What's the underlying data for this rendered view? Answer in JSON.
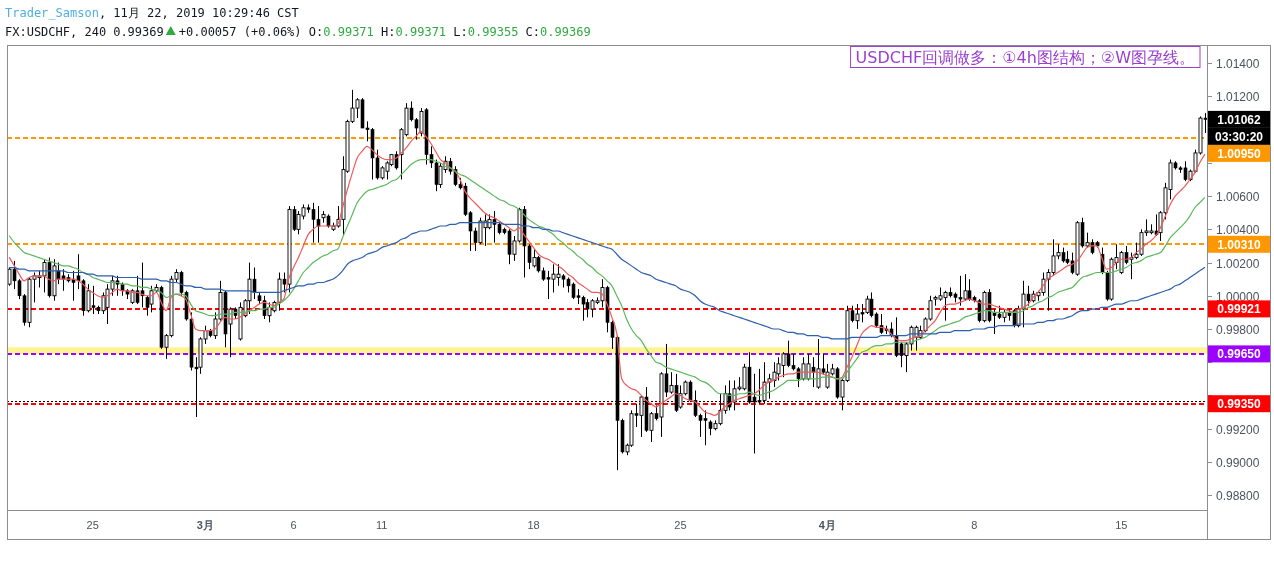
{
  "chart_data": {
    "type": "candlestick",
    "title": "FX:USDCHF, 240",
    "annotations": [
      "Trader_Samson, 11月 22, 2019 10:29:46 CST",
      "0.99369",
      "+0.00057 (+0.06%) O:0.99371 H:0.99371 L:0.99355 C:0.99369",
      "USDCHF回调做多：①4h图结构；②W图孕线。",
      "1.01062",
      "03:30:20"
    ],
    "categories": [
      null,
      null,
      null,
      null,
      null,
      null,
      null,
      null,
      null,
      null,
      null,
      null,
      null,
      null,
      null,
      null,
      null,
      "25",
      null,
      null,
      null,
      null,
      null,
      null,
      null,
      null,
      null,
      null,
      null,
      null,
      null,
      null,
      null,
      null,
      null,
      null,
      null,
      null,
      null,
      null,
      "3月",
      null,
      null,
      null,
      null,
      null,
      null,
      null,
      null,
      null,
      null,
      null,
      null,
      null,
      null,
      null,
      null,
      null,
      "6",
      null,
      null,
      null,
      null,
      null,
      null,
      null,
      null,
      null,
      null,
      null,
      null,
      null,
      null,
      null,
      null,
      null,
      "11",
      null,
      null,
      null,
      null,
      null,
      null,
      null,
      null,
      null,
      null,
      null,
      null,
      null,
      null,
      null,
      null,
      null,
      null,
      null,
      null,
      null,
      null,
      null,
      null,
      null,
      null,
      null,
      null,
      null,
      null,
      "18",
      null,
      null,
      null,
      null,
      null,
      null,
      null,
      null,
      null,
      null,
      null,
      null,
      null,
      null,
      null,
      null,
      null,
      null,
      null,
      null,
      null,
      null,
      null,
      null,
      null,
      null,
      null,
      null,
      null,
      "25",
      null,
      null,
      null,
      null,
      null,
      null,
      null,
      null,
      null,
      null,
      null,
      null,
      null,
      null,
      null,
      null,
      null,
      null,
      null,
      null,
      null,
      null,
      null,
      null,
      null,
      null,
      null,
      null,
      null,
      "4月",
      null,
      null,
      null,
      null,
      null,
      null,
      null,
      null,
      null,
      null,
      null,
      null,
      null,
      null,
      null,
      null,
      null,
      null,
      null,
      null,
      null,
      null,
      null,
      null,
      null,
      null,
      null,
      null,
      null,
      "8",
      null,
      null,
      null,
      null,
      null,
      null,
      null,
      null,
      null,
      null,
      null,
      null,
      null,
      null,
      null,
      null,
      null,
      null,
      null,
      null,
      null,
      null,
      null,
      null,
      null,
      null,
      null,
      null,
      null,
      "15",
      null,
      null,
      null,
      null,
      null,
      null,
      null,
      null,
      null,
      null,
      null,
      null,
      null,
      null,
      null,
      null,
      null
    ],
    "ohlc": [
      [
        1.0007,
        1.0017,
        1.0006,
        1.0016
      ],
      [
        1.0016,
        1.0021,
        1.0004,
        1.0009
      ],
      [
        1.0009,
        1.001,
        0.9998,
        1.0
      ],
      [
        1.0,
        1.0001,
        0.9982,
        0.9984
      ],
      [
        0.9984,
        1.0011,
        0.9981,
        1.001
      ],
      [
        1.001,
        1.0014,
        0.9996,
        1.0012
      ],
      [
        1.0011,
        1.0015,
        1.0005,
        1.0012
      ],
      [
        1.0012,
        1.0022,
        1.0002,
        1.002
      ],
      [
        1.002,
        1.0023,
        0.9999,
        1.0
      ],
      [
        1.0,
        1.0022,
        0.9997,
        1.0018
      ],
      [
        1.0015,
        1.002,
        1.0007,
        1.001
      ],
      [
        1.0012,
        1.0016,
        1.0003,
        1.001
      ],
      [
        1.0011,
        1.0013,
        1.0008,
        1.0009
      ],
      [
        1.001,
        1.0015,
        0.9997,
        1.0008
      ],
      [
        1.0012,
        1.0025,
        1.0004,
        1.0009
      ],
      [
        1.0009,
        1.001,
        0.9988,
        0.9991
      ],
      [
        0.9991,
        1.0007,
        0.999,
        1.0003
      ],
      [
        0.9994,
        1.0006,
        0.9989,
        0.9993
      ],
      [
        0.9993,
        0.9994,
        0.9989,
        0.9991
      ],
      [
        0.9991,
        1.0002,
        0.9989,
        1.0
      ],
      [
        0.9993,
        1.0007,
        0.9983,
        1.0004
      ],
      [
        1.0004,
        1.0012,
        1.0,
        1.0009
      ],
      [
        1.0009,
        1.0012,
        1.0,
        1.0007
      ],
      [
        1.0007,
        1.0008,
        1.0,
        1.0003
      ],
      [
        1.0003,
        1.0004,
        0.9998,
        1.0001
      ],
      [
        0.9996,
        1.0004,
        0.9995,
        1.0003
      ],
      [
        1.0003,
        1.0012,
        0.9995,
        0.9996
      ],
      [
        1.0003,
        1.002,
        0.9993,
        1.0
      ],
      [
        0.9999,
        1.0,
        0.9988,
        0.9993
      ],
      [
        0.9995,
        1.0006,
        0.999,
        1.0003
      ],
      [
        1.0003,
        1.0007,
        1.0002,
        1.0005
      ],
      [
        1.0005,
        1.0006,
        0.9968,
        0.9969
      ],
      [
        0.9969,
        0.9977,
        0.9962,
        0.9976
      ],
      [
        0.9976,
        1.0012,
        0.9975,
        1.001
      ],
      [
        1.001,
        1.0016,
        1.0008,
        1.0014
      ],
      [
        1.0014,
        1.0015,
        1.0,
        1.0002
      ],
      [
        1.0002,
        1.0003,
        0.9985,
        0.9986
      ],
      [
        0.9986,
        0.999,
        0.9955,
        0.9957
      ],
      [
        0.9957,
        0.9963,
        0.9927,
        0.9956
      ],
      [
        0.9957,
        0.9975,
        0.9953,
        0.9974
      ],
      [
        0.9974,
        0.9982,
        0.9971,
        0.9979
      ],
      [
        0.9979,
        0.998,
        0.9975,
        0.9976
      ],
      [
        0.9976,
        0.999,
        0.9974,
        0.9986
      ],
      [
        0.9986,
        1.0009,
        0.9985,
        1.0002
      ],
      [
        1.0002,
        1.0003,
        0.9969,
        0.9977
      ],
      [
        0.9983,
        0.9993,
        0.9963,
        0.9992
      ],
      [
        0.9992,
        0.9993,
        0.9986,
        0.9988
      ],
      [
        0.9974,
        0.9996,
        0.9973,
        0.9993
      ],
      [
        0.9988,
        0.9998,
        0.9987,
        0.9997
      ],
      [
        0.9997,
        1.002,
        0.9989,
        1.001
      ],
      [
        1.001,
        1.0017,
        0.9998,
        1.0002
      ],
      [
        1.0,
        1.0002,
        0.9995,
        0.9997
      ],
      [
        0.9997,
        1.0,
        0.9986,
        0.9988
      ],
      [
        0.9988,
        0.9996,
        0.9984,
        0.9993
      ],
      [
        0.9991,
        0.9997,
        0.999,
        0.9996
      ],
      [
        0.9996,
        1.0014,
        0.9991,
        1.001
      ],
      [
        1.001,
        1.0014,
        1.0002,
        1.0007
      ],
      [
        1.0007,
        1.0054,
        1.0002,
        1.0052
      ],
      [
        1.0052,
        1.0054,
        1.0039,
        1.004
      ],
      [
        1.004,
        1.0051,
        1.0037,
        1.0049
      ],
      [
        1.0048,
        1.0055,
        1.0046,
        1.0053
      ],
      [
        1.0053,
        1.0055,
        1.005,
        1.0052
      ],
      [
        1.0052,
        1.0056,
        1.0032,
        1.0046
      ],
      [
        1.0046,
        1.0054,
        1.0032,
        1.0042
      ],
      [
        1.0047,
        1.0051,
        1.0044,
        1.0049
      ],
      [
        1.0048,
        1.0049,
        1.0041,
        1.0042
      ],
      [
        1.004,
        1.0044,
        1.0039,
        1.0042
      ],
      [
        1.0042,
        1.0054,
        1.0041,
        1.0046
      ],
      [
        1.0046,
        1.0084,
        1.0036,
        1.0076
      ],
      [
        1.0075,
        1.0106,
        1.0074,
        1.0105
      ],
      [
        1.0105,
        1.0124,
        1.0104,
        1.0113
      ],
      [
        1.0113,
        1.0119,
        1.0107,
        1.0118
      ],
      [
        1.0118,
        1.0119,
        1.0101,
        1.0101
      ],
      [
        1.0101,
        1.0105,
        1.0093,
        1.01
      ],
      [
        1.01,
        1.0101,
        1.007,
        1.0083
      ],
      [
        1.0083,
        1.0088,
        1.007,
        1.0071
      ],
      [
        1.0071,
        1.0078,
        1.007,
        1.0077
      ],
      [
        1.0075,
        1.0081,
        1.007,
        1.008
      ],
      [
        1.0079,
        1.0085,
        1.0078,
        1.0085
      ],
      [
        1.0085,
        1.0087,
        1.0076,
        1.0077
      ],
      [
        1.0085,
        1.0101,
        1.007,
        1.01
      ],
      [
        1.0097,
        1.0116,
        1.0096,
        1.0113
      ],
      [
        1.0113,
        1.0117,
        1.0105,
        1.0106
      ],
      [
        1.0106,
        1.0107,
        1.0094,
        1.0101
      ],
      [
        1.0098,
        1.0113,
        1.0096,
        1.0111
      ],
      [
        1.0112,
        1.0113,
        1.0079,
        1.0085
      ],
      [
        1.0085,
        1.009,
        1.0077,
        1.008
      ],
      [
        1.008,
        1.0082,
        1.0063,
        1.0067
      ],
      [
        1.0067,
        1.008,
        1.0065,
        1.0078
      ],
      [
        1.0076,
        1.0084,
        1.0074,
        1.0081
      ],
      [
        1.0081,
        1.0083,
        1.0073,
        1.0075
      ],
      [
        1.0076,
        1.0078,
        1.0066,
        1.0067
      ],
      [
        1.0067,
        1.0071,
        1.0064,
        1.0065
      ],
      [
        1.0066,
        1.0068,
        1.0048,
        1.0049
      ],
      [
        1.005,
        1.0051,
        1.0027,
        1.0039
      ],
      [
        1.0039,
        1.0041,
        1.0027,
        1.0032
      ],
      [
        1.0032,
        1.0047,
        1.0031,
        1.0045
      ],
      [
        1.0041,
        1.0049,
        1.003,
        1.0045
      ],
      [
        1.0041,
        1.0049,
        1.004,
        1.0046
      ],
      [
        1.0046,
        1.0051,
        1.0032,
        1.0043
      ],
      [
        1.0043,
        1.0044,
        1.0037,
        1.0038
      ],
      [
        1.004,
        1.0041,
        1.0037,
        1.0038
      ],
      [
        1.0039,
        1.004,
        1.0019,
        1.0025
      ],
      [
        1.0025,
        1.0036,
        1.0021,
        1.0033
      ],
      [
        1.0033,
        1.0053,
        1.0032,
        1.0052
      ],
      [
        1.0052,
        1.0054,
        1.0011,
        1.003
      ],
      [
        1.003,
        1.0031,
        1.0016,
        1.002
      ],
      [
        1.0018,
        1.0028,
        1.0017,
        1.0023
      ],
      [
        1.0023,
        1.0024,
        1.0014,
        1.0015
      ],
      [
        1.0015,
        1.0017,
        1.0009,
        1.001
      ],
      [
        1.0011,
        1.0015,
        0.9998,
        1.001
      ],
      [
        1.001,
        1.0019,
        1.0002,
        1.0013
      ],
      [
        1.0011,
        1.0019,
        1.0006,
        1.0013
      ],
      [
        1.0012,
        1.0013,
        1.0005,
        1.001
      ],
      [
        1.001,
        1.0011,
        1.0002,
        1.0006
      ],
      [
        1.0007,
        1.0008,
        0.9998,
        0.9999
      ],
      [
        1.0,
        1.0004,
        0.9995,
        0.9999
      ],
      [
        0.9999,
        1.0,
        0.9985,
        0.9995
      ],
      [
        0.9996,
        0.9998,
        0.9987,
        0.9992
      ],
      [
        0.9992,
        0.9998,
        0.9987,
        0.9997
      ],
      [
        0.9996,
        0.9999,
        0.9995,
        0.9997
      ],
      [
        0.9997,
        1.001,
        0.9993,
        1.0005
      ],
      [
        1.0005,
        1.0006,
        0.9978,
        0.9984
      ],
      [
        0.9984,
        0.9985,
        0.9968,
        0.9975
      ],
      [
        0.9975,
        0.9976,
        0.9895,
        0.9925
      ],
      [
        0.9925,
        0.9926,
        0.9905,
        0.9906
      ],
      [
        0.9906,
        0.9911,
        0.9904,
        0.991
      ],
      [
        0.991,
        0.9931,
        0.9909,
        0.9929
      ],
      [
        0.9929,
        0.9935,
        0.9921,
        0.9928
      ],
      [
        0.9928,
        0.994,
        0.9915,
        0.9939
      ],
      [
        0.9939,
        0.9945,
        0.9918,
        0.9919
      ],
      [
        0.9919,
        0.993,
        0.9912,
        0.9929
      ],
      [
        0.9929,
        0.9934,
        0.9925,
        0.9926
      ],
      [
        0.9927,
        0.9954,
        0.9915,
        0.9953
      ],
      [
        0.9953,
        0.9971,
        0.9939,
        0.9942
      ],
      [
        0.9942,
        0.9954,
        0.9941,
        0.9946
      ],
      [
        0.9946,
        0.9953,
        0.993,
        0.9931
      ],
      [
        0.9933,
        0.9946,
        0.9932,
        0.9941
      ],
      [
        0.9941,
        0.9949,
        0.994,
        0.9948
      ],
      [
        0.9948,
        0.9949,
        0.9936,
        0.9937
      ],
      [
        0.9937,
        0.9943,
        0.9927,
        0.9928
      ],
      [
        0.9928,
        0.9929,
        0.9915,
        0.9925
      ],
      [
        0.9926,
        0.9931,
        0.991,
        0.9925
      ],
      [
        0.9924,
        0.9925,
        0.9916,
        0.992
      ],
      [
        0.992,
        0.9925,
        0.9919,
        0.9923
      ],
      [
        0.9923,
        0.9941,
        0.9922,
        0.9931
      ],
      [
        0.9931,
        0.9946,
        0.9929,
        0.9941
      ],
      [
        0.9941,
        0.9949,
        0.9931,
        0.9933
      ],
      [
        0.9936,
        0.9949,
        0.9931,
        0.9944
      ],
      [
        0.9944,
        0.9951,
        0.9943,
        0.9945
      ],
      [
        0.9944,
        0.9959,
        0.9943,
        0.9957
      ],
      [
        0.9957,
        0.9966,
        0.9935,
        0.9936
      ],
      [
        0.9939,
        0.9953,
        0.9905,
        0.9936
      ],
      [
        0.9937,
        0.9956,
        0.9935,
        0.9936
      ],
      [
        0.9937,
        0.996,
        0.9935,
        0.9948
      ],
      [
        0.9948,
        0.9953,
        0.9938,
        0.995
      ],
      [
        0.9949,
        0.996,
        0.9945,
        0.9954
      ],
      [
        0.9953,
        0.9963,
        0.9949,
        0.9959
      ],
      [
        0.9958,
        0.9966,
        0.9951,
        0.9965
      ],
      [
        0.9965,
        0.9973,
        0.9957,
        0.9958
      ],
      [
        0.9958,
        0.9965,
        0.9955,
        0.9956
      ],
      [
        0.9956,
        0.9957,
        0.9945,
        0.995
      ],
      [
        0.995,
        0.9963,
        0.9949,
        0.9959
      ],
      [
        0.995,
        0.9965,
        0.9949,
        0.9959
      ],
      [
        0.9957,
        0.9963,
        0.9945,
        0.9954
      ],
      [
        0.9945,
        0.9974,
        0.9944,
        0.9956
      ],
      [
        0.9956,
        0.9965,
        0.9953,
        0.9954
      ],
      [
        0.9945,
        0.9959,
        0.9944,
        0.9954
      ],
      [
        0.9953,
        0.9959,
        0.9952,
        0.9956
      ],
      [
        0.9956,
        0.9957,
        0.9938,
        0.9939
      ],
      [
        0.9939,
        0.995,
        0.9931,
        0.9949
      ],
      [
        0.9949,
        0.9994,
        0.9948,
        0.9991
      ],
      [
        0.9991,
        0.9994,
        0.9984,
        0.9985
      ],
      [
        0.9985,
        0.9995,
        0.998,
        0.9989
      ],
      [
        0.999,
        0.9995,
        0.9984,
        0.9989
      ],
      [
        0.999,
        1.0,
        0.9989,
        0.9998
      ],
      [
        0.9998,
        1.0002,
        0.9987,
        0.9988
      ],
      [
        0.9989,
        0.999,
        0.9981,
        0.9982
      ],
      [
        0.9982,
        0.9989,
        0.9977,
        0.9978
      ],
      [
        0.998,
        0.9982,
        0.9977,
        0.9979
      ],
      [
        0.998,
        0.9984,
        0.9975,
        0.9976
      ],
      [
        0.9976,
        0.9987,
        0.9963,
        0.9964
      ],
      [
        0.9971,
        0.9972,
        0.9957,
        0.9964
      ],
      [
        0.9964,
        0.9972,
        0.9954,
        0.9971
      ],
      [
        0.9971,
        0.9982,
        0.9967,
        0.9981
      ],
      [
        0.9975,
        0.9982,
        0.9967,
        0.9981
      ],
      [
        0.9975,
        0.9982,
        0.9974,
        0.9979
      ],
      [
        0.9979,
        0.9987,
        0.9978,
        0.9986
      ],
      [
        0.9986,
        1.0,
        0.9985,
        0.9997
      ],
      [
        0.9998,
        1.0,
        0.9994,
        0.9999
      ],
      [
        0.9998,
        1.0005,
        0.9997,
        1.0
      ],
      [
        0.9999,
        1.0003,
        0.9985,
        1.0002
      ],
      [
        1.0002,
        1.0005,
        0.9999,
        1.0
      ],
      [
        1.0001,
        1.0002,
        0.9996,
        0.9999
      ],
      [
        0.9999,
        1.0012,
        0.9994,
        0.9998
      ],
      [
        0.9998,
        1.0013,
        0.9997,
        1.0003
      ],
      [
        1.0003,
        1.001,
        0.9997,
        0.9998
      ],
      [
        0.9999,
        1.0,
        0.9996,
        0.9997
      ],
      [
        0.9997,
        0.9998,
        0.9984,
        0.9985
      ],
      [
        0.9985,
        1.0003,
        0.9984,
        1.0002
      ],
      [
        1.0002,
        1.0004,
        0.9984,
        0.9985
      ],
      [
        0.999,
        0.9992,
        0.9977,
        0.9988
      ],
      [
        0.9989,
        0.9994,
        0.9986,
        0.9987
      ],
      [
        0.9987,
        0.9992,
        0.9984,
        0.999
      ],
      [
        0.999,
        0.9992,
        0.9985,
        0.9988
      ],
      [
        0.9991,
        0.9992,
        0.9981,
        0.9982
      ],
      [
        0.9982,
        0.9994,
        0.9981,
        0.9992
      ],
      [
        0.9992,
        1.0009,
        0.9981,
        1.0001
      ],
      [
        1.0001,
        1.0006,
        0.9994,
        0.9997
      ],
      [
        0.9997,
        1.0003,
        0.9996,
        1.0001
      ],
      [
        1.0,
        1.0003,
        0.9997,
        1.0002
      ],
      [
        1.0002,
        1.0014,
        1.0,
        1.001
      ],
      [
        1.001,
        1.0016,
        0.9991,
        1.0014
      ],
      [
        1.0014,
        1.0034,
        1.0012,
        1.0024
      ],
      [
        1.0024,
        1.0031,
        1.0022,
        1.0026
      ],
      [
        1.0026,
        1.0029,
        1.002,
        1.0021
      ],
      [
        1.0022,
        1.0027,
        1.0019,
        1.002
      ],
      [
        1.0021,
        1.0026,
        1.0013,
        1.0014
      ],
      [
        1.0013,
        1.0045,
        1.0012,
        1.0044
      ],
      [
        1.0044,
        1.0047,
        1.0029,
        1.003
      ],
      [
        1.003,
        1.0038,
        1.0029,
        1.0032
      ],
      [
        1.0032,
        1.0034,
        1.0025,
        1.0026
      ],
      [
        1.0032,
        1.0033,
        1.0029,
        1.003
      ],
      [
        1.0025,
        1.0029,
        1.0013,
        1.0014
      ],
      [
        1.0014,
        1.0015,
        0.9997,
        0.9998
      ],
      [
        0.9998,
        1.0023,
        0.9997,
        1.0022
      ],
      [
        1.002,
        1.0031,
        1.0016,
        1.0023
      ],
      [
        1.0014,
        1.0027,
        1.0013,
        1.0026
      ],
      [
        1.0026,
        1.003,
        1.0019,
        1.002
      ],
      [
        1.0022,
        1.0026,
        1.001,
        1.0023
      ],
      [
        1.0023,
        1.0032,
        1.0022,
        1.0025
      ],
      [
        1.0025,
        1.004,
        1.0024,
        1.0038
      ],
      [
        1.0038,
        1.0046,
        1.0036,
        1.0039
      ],
      [
        1.0038,
        1.0043,
        1.0037,
        1.0039
      ],
      [
        1.0039,
        1.0049,
        1.0036,
        1.0037
      ],
      [
        1.0038,
        1.0051,
        1.0033,
        1.005
      ],
      [
        1.005,
        1.0068,
        1.0046,
        1.0065
      ],
      [
        1.0064,
        1.0082,
        1.0058,
        1.008
      ],
      [
        1.008,
        1.0081,
        1.0076,
        1.0077
      ],
      [
        1.0077,
        1.0078,
        1.0074,
        1.0076
      ],
      [
        1.0077,
        1.0081,
        1.0069,
        1.007
      ],
      [
        1.007,
        1.0076,
        1.0069,
        1.0075
      ],
      [
        1.0075,
        1.0088,
        1.0074,
        1.0086
      ],
      [
        1.0086,
        1.0108,
        1.0085,
        1.0107
      ],
      [
        1.0107,
        1.011,
        1.0098,
        1.01062
      ]
    ],
    "series": [
      {
        "type": "line",
        "color": "#f05a5a",
        "values": [
          1.0023,
          1.0018,
          1.0013,
          1.0009,
          1.0011,
          1.0012,
          1.0012,
          1.0012,
          1.001,
          1.0009,
          1.001,
          1.001,
          1.001,
          1.001,
          1.0009,
          1.0007,
          1.0004,
          1.0002,
          1.0,
          0.9999,
          1.0,
          1.0002,
          1.0004,
          1.0003,
          1.0003,
          1.0002,
          1.0002,
          1.0001,
          1.0,
          1.0,
          1.0002,
          0.9996,
          0.9991,
          0.9999,
          1.0001,
          1.0,
          0.9998,
          0.9989,
          0.998,
          0.9979,
          0.9979,
          0.9979,
          0.998,
          0.9984,
          0.9987,
          0.9986,
          0.9986,
          0.9987,
          0.9989,
          0.9991,
          0.9993,
          0.9995,
          0.9996,
          0.9995,
          0.9994,
          0.9996,
          0.9998,
          1.001,
          1.0017,
          1.0023,
          1.003,
          1.0037,
          1.004,
          1.0042,
          1.0042,
          1.0042,
          1.0042,
          1.0043,
          1.0053,
          1.0064,
          1.0074,
          1.0083,
          1.0087,
          1.009,
          1.0088,
          1.0085,
          1.0083,
          1.0082,
          1.0082,
          1.0083,
          1.0086,
          1.0089,
          1.0093,
          1.0096,
          1.0099,
          1.0096,
          1.0092,
          1.0087,
          1.0082,
          1.008,
          1.0077,
          1.0075,
          1.007,
          1.0063,
          1.0059,
          1.0056,
          1.0053,
          1.005,
          1.0048,
          1.0047,
          1.0045,
          1.0043,
          1.0041,
          1.0039,
          1.0041,
          1.0037,
          1.0033,
          1.0029,
          1.0025,
          1.0023,
          1.0022,
          1.002,
          1.0018,
          1.0016,
          1.0013,
          1.0011,
          1.0008,
          1.0006,
          1.0004,
          1.0002,
          1.0002,
          1.0001,
          0.9995,
          0.9987,
          0.9977,
          0.995,
          0.9946,
          0.9944,
          0.9943,
          0.994,
          0.9937,
          0.9935,
          0.9933,
          0.9935,
          0.9937,
          0.9939,
          0.9941,
          0.994,
          0.9938,
          0.9937,
          0.9936,
          0.9933,
          0.993,
          0.9929,
          0.9928,
          0.993,
          0.9933,
          0.9935,
          0.9937,
          0.9938,
          0.9939,
          0.994,
          0.9941,
          0.9943,
          0.9946,
          0.9948,
          0.9949,
          0.9951,
          0.9952,
          0.9953,
          0.9953,
          0.9954,
          0.9954,
          0.9954,
          0.9954,
          0.9954,
          0.9953,
          0.9952,
          0.9951,
          0.995,
          0.9951,
          0.9957,
          0.9963,
          0.997,
          0.9977,
          0.998,
          0.9982,
          0.9981,
          0.9981,
          0.998,
          0.9977,
          0.9974,
          0.9973,
          0.9973,
          0.9974,
          0.9975,
          0.9976,
          0.9979,
          0.9982,
          0.9985,
          0.999,
          0.9994,
          0.9995,
          0.9995,
          0.9996,
          0.9997,
          0.9998,
          0.9997,
          0.9996,
          0.9995,
          0.9995,
          0.9994,
          0.9993,
          0.9992,
          0.9991,
          0.999,
          0.9992,
          0.9993,
          0.9995,
          0.9999,
          1.0002,
          1.0006,
          1.001,
          1.0012,
          1.0014,
          1.0016,
          1.0018,
          1.0019,
          1.0021,
          1.0025,
          1.0029,
          1.003,
          1.003,
          1.0023,
          1.0016,
          1.0017,
          1.002,
          1.0022,
          1.0022,
          1.0023,
          1.0026,
          1.0028,
          1.0031,
          1.0033,
          1.0036,
          1.0041,
          1.0048,
          1.0055,
          1.006,
          1.0063,
          1.0066,
          1.007,
          1.0074,
          1.008,
          1.0085
        ]
      },
      {
        "type": "line",
        "color": "#5cb85c",
        "values": [
          1.0036,
          1.0032,
          1.0029,
          1.0026,
          1.0025,
          1.0024,
          1.0023,
          1.0022,
          1.0021,
          1.002,
          1.0019,
          1.0018,
          1.0018,
          1.0017,
          1.0016,
          1.0014,
          1.0013,
          1.0011,
          1.001,
          1.0009,
          1.0008,
          1.0008,
          1.0008,
          1.0007,
          1.0007,
          1.0006,
          1.0006,
          1.0005,
          1.0005,
          1.0004,
          1.0003,
          1.0002,
          0.9999,
          1.0,
          1.0001,
          1.0001,
          1.0,
          0.9995,
          0.9991,
          0.999,
          0.9989,
          0.9988,
          0.9988,
          0.9989,
          0.9989,
          0.9989,
          0.999,
          0.999,
          0.999,
          0.9991,
          0.9991,
          0.9992,
          0.9992,
          0.9993,
          0.9993,
          0.9995,
          0.9997,
          1.0,
          1.0004,
          1.0009,
          1.0014,
          1.0017,
          1.002,
          1.0022,
          1.0024,
          1.0025,
          1.0027,
          1.0028,
          1.0035,
          1.0042,
          1.0049,
          1.0056,
          1.006,
          1.0063,
          1.0064,
          1.0065,
          1.0066,
          1.0067,
          1.0069,
          1.007,
          1.0073,
          1.0076,
          1.0079,
          1.0081,
          1.0082,
          1.0082,
          1.0082,
          1.0081,
          1.008,
          1.0078,
          1.0077,
          1.0075,
          1.0073,
          1.0072,
          1.007,
          1.0068,
          1.0066,
          1.0064,
          1.0062,
          1.006,
          1.0058,
          1.0057,
          1.0055,
          1.0054,
          1.0052,
          1.0049,
          1.0046,
          1.0044,
          1.0042,
          1.0041,
          1.0039,
          1.0037,
          1.0034,
          1.0032,
          1.0029,
          1.0027,
          1.0024,
          1.0022,
          1.0019,
          1.0017,
          1.0014,
          1.0012,
          1.0009,
          1.0006,
          1.0,
          0.9994,
          0.9986,
          0.998,
          0.9976,
          0.9973,
          0.9968,
          0.9964,
          0.996,
          0.9959,
          0.9957,
          0.9956,
          0.9955,
          0.9954,
          0.9953,
          0.9952,
          0.9951,
          0.9949,
          0.9948,
          0.9946,
          0.9943,
          0.9941,
          0.9941,
          0.994,
          0.994,
          0.9941,
          0.9941,
          0.9942,
          0.9941,
          0.994,
          0.9941,
          0.9942,
          0.9943,
          0.9945,
          0.9947,
          0.9949,
          0.9949,
          0.9949,
          0.995,
          0.995,
          0.995,
          0.995,
          0.9951,
          0.9951,
          0.9951,
          0.995,
          0.995,
          0.9954,
          0.9958,
          0.9962,
          0.9966,
          0.9967,
          0.9969,
          0.997,
          0.997,
          0.9971,
          0.9971,
          0.9972,
          0.9972,
          0.9972,
          0.9972,
          0.9973,
          0.9974,
          0.9975,
          0.9977,
          0.9979,
          0.9981,
          0.9982,
          0.9983,
          0.9984,
          0.9985,
          0.9987,
          0.9988,
          0.9989,
          0.999,
          0.9991,
          0.9991,
          0.999,
          0.999,
          0.999,
          0.999,
          0.999,
          0.999,
          0.9991,
          0.9993,
          0.9994,
          0.9996,
          0.9997,
          0.9999,
          1.0,
          1.0002,
          1.0003,
          1.0004,
          1.0005,
          1.0008,
          1.0011,
          1.0012,
          1.0013,
          1.0014,
          1.0014,
          1.0014,
          1.0014,
          1.0015,
          1.0016,
          1.0017,
          1.0019,
          1.002,
          1.0021,
          1.0023,
          1.0024,
          1.0025,
          1.0026,
          1.003,
          1.0035,
          1.0038,
          1.0041,
          1.0044,
          1.0048,
          1.0053,
          1.0056,
          1.0059
        ]
      },
      {
        "type": "line",
        "color": "#2c5fad",
        "values": [
          1.0017,
          1.0017,
          1.0016,
          1.0016,
          1.0015,
          1.0015,
          1.0015,
          1.0015,
          1.0015,
          1.0015,
          1.0015,
          1.0015,
          1.0014,
          1.0014,
          1.0014,
          1.0014,
          1.0013,
          1.0013,
          1.0012,
          1.0012,
          1.0012,
          1.0012,
          1.0011,
          1.0011,
          1.0011,
          1.0011,
          1.0011,
          1.001,
          1.001,
          1.001,
          1.001,
          1.0009,
          1.0009,
          1.0008,
          1.0008,
          1.0007,
          1.0006,
          1.0006,
          1.0005,
          1.0005,
          1.0004,
          1.0004,
          1.0004,
          1.0004,
          1.0003,
          1.0003,
          1.0003,
          1.0003,
          1.0003,
          1.0003,
          1.0002,
          1.0002,
          1.0002,
          1.0002,
          1.0002,
          1.0002,
          1.0003,
          1.0004,
          1.0005,
          1.0006,
          1.0006,
          1.0007,
          1.0007,
          1.0008,
          1.0008,
          1.0009,
          1.001,
          1.0012,
          1.0015,
          1.0019,
          1.0021,
          1.0022,
          1.0023,
          1.0025,
          1.0026,
          1.0027,
          1.0029,
          1.003,
          1.0031,
          1.0032,
          1.0034,
          1.0035,
          1.0037,
          1.0038,
          1.0039,
          1.0039,
          1.004,
          1.0041,
          1.0042,
          1.0042,
          1.0043,
          1.0043,
          1.0044,
          1.0044,
          1.0044,
          1.0044,
          1.0044,
          1.0044,
          1.0044,
          1.0044,
          1.0044,
          1.0043,
          1.0043,
          1.0043,
          1.0043,
          1.0042,
          1.0042,
          1.0041,
          1.0041,
          1.004,
          1.004,
          1.0039,
          1.0039,
          1.0038,
          1.0037,
          1.0036,
          1.0035,
          1.0034,
          1.0033,
          1.0032,
          1.0031,
          1.003,
          1.0029,
          1.0028,
          1.0025,
          1.0022,
          1.002,
          1.0018,
          1.0016,
          1.0014,
          1.0013,
          1.0012,
          1.001,
          1.0009,
          1.0008,
          1.0007,
          1.0006,
          1.0004,
          1.0003,
          1.0002,
          1.0,
          0.9997,
          0.9995,
          0.9994,
          0.9993,
          0.9991,
          0.999,
          0.9989,
          0.9988,
          0.9987,
          0.9986,
          0.9985,
          0.9984,
          0.9983,
          0.9982,
          0.9981,
          0.998,
          0.998,
          0.9979,
          0.9978,
          0.9978,
          0.9977,
          0.9977,
          0.9976,
          0.9976,
          0.9976,
          0.9975,
          0.9975,
          0.9974,
          0.9974,
          0.9974,
          0.9974,
          0.9975,
          0.9975,
          0.9975,
          0.9975,
          0.9975,
          0.9975,
          0.9976,
          0.9976,
          0.9976,
          0.9976,
          0.9976,
          0.9976,
          0.9977,
          0.9977,
          0.9977,
          0.9977,
          0.9977,
          0.9977,
          0.9978,
          0.9978,
          0.9978,
          0.9979,
          0.9979,
          0.9979,
          0.9979,
          0.998,
          0.998,
          0.998,
          0.9981,
          0.9981,
          0.9982,
          0.9982,
          0.9982,
          0.9982,
          0.9983,
          0.9983,
          0.9983,
          0.9983,
          0.9984,
          0.9984,
          0.9985,
          0.9985,
          0.9986,
          0.9986,
          0.9987,
          0.9988,
          0.999,
          0.9991,
          0.9991,
          0.9992,
          0.9992,
          0.9993,
          0.9993,
          0.9994,
          0.9995,
          0.9995,
          0.9996,
          0.9997,
          0.9997,
          0.9998,
          0.9999,
          1.0,
          1.0001,
          1.0002,
          1.0003,
          1.0004,
          1.0006,
          1.0007,
          1.0009,
          1.0011,
          1.0013,
          1.0015,
          1.0017
        ]
      }
    ],
    "ylim": [
      0.9871,
      1.0151
    ],
    "yticks": [
      {
        "value": 0.988,
        "label": "0.98800"
      },
      {
        "value": 0.99,
        "label": "0.99000"
      },
      {
        "value": 0.992,
        "label": "0.99200"
      },
      {
        "value": 0.994,
        "label": null
      },
      {
        "value": 0.996,
        "label": null
      },
      {
        "value": 0.998,
        "label": "0.99800"
      },
      {
        "value": 1,
        "label": "1.00000"
      },
      {
        "value": 1.002,
        "label": "1.00200"
      },
      {
        "value": 1.004,
        "label": "1.00400"
      },
      {
        "value": 1.006,
        "label": "1.00600"
      },
      {
        "value": 1.008,
        "label": null
      },
      {
        "value": 1.01,
        "label": null
      },
      {
        "value": 1.012,
        "label": "1.01200"
      },
      {
        "value": 1.014,
        "label": "1.01400"
      }
    ],
    "ref_lines": [
      {
        "axis": "y",
        "value": 1.0095,
        "label": "1.00950",
        "color": "#ff9800",
        "line_style": "dashed"
      },
      {
        "axis": "y",
        "value": 1.0031,
        "label": "1.00310",
        "color": "#ff9800",
        "line_style": "dashed"
      },
      {
        "axis": "y",
        "value": 0.99921,
        "label": "0.99921",
        "color": "#ff0000",
        "line_style": "dashed"
      },
      {
        "axis": "y",
        "value": 0.9965,
        "label": "0.99650",
        "color": "#9c00ff",
        "line_style": "dashed"
      },
      {
        "axis": "y",
        "value": 0.99367,
        "color": "#000000",
        "line_style": "dotted"
      },
      {
        "axis": "y",
        "value": 0.9935,
        "label": "0.99350",
        "color": "#ff0000",
        "line_style": "dashed"
      }
    ],
    "bands": [
      {
        "axis": "y",
        "from": 0.9965,
        "to": 0.9969,
        "color": "#fff176"
      }
    ]
  }
}
